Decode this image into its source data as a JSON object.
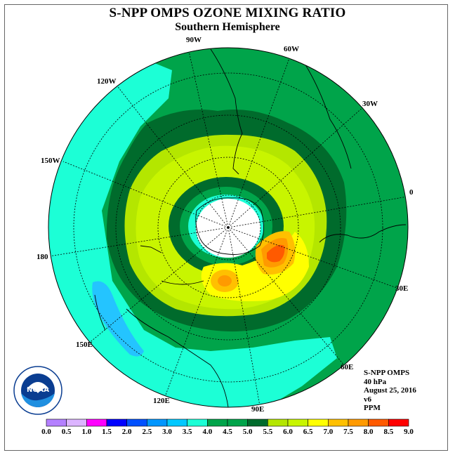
{
  "title": "S-NPP OMPS OZONE MIXING RATIO",
  "subtitle": "Southern Hemisphere",
  "lon_labels": [
    "90W",
    "60W",
    "30W",
    "0",
    "30E",
    "60E",
    "90E",
    "120E",
    "150E",
    "180",
    "150W",
    "120W"
  ],
  "info": {
    "instrument": "S-NPP OMPS",
    "pressure": "40 hPa",
    "date": "August 25, 2016",
    "version": "v6",
    "units": "PPM"
  },
  "colorbar": {
    "ticks": [
      "0.0",
      "0.5",
      "1.0",
      "1.5",
      "2.0",
      "2.5",
      "3.0",
      "3.5",
      "4.0",
      "4.5",
      "5.0",
      "5.5",
      "6.0",
      "6.5",
      "7.0",
      "7.5",
      "8.0",
      "8.5",
      "9.0"
    ],
    "colors": [
      "#b480ff",
      "#dcb4ff",
      "#ff00ff",
      "#0000ff",
      "#0050ff",
      "#0096ff",
      "#00c8ff",
      "#1cffd6",
      "#00a44a",
      "#00a44a",
      "#006b2c",
      "#b4e600",
      "#c8f500",
      "#ffff00",
      "#ffc000",
      "#ff9a00",
      "#ff5a00",
      "#ff0000",
      "#8b5a2b"
    ]
  }
}
